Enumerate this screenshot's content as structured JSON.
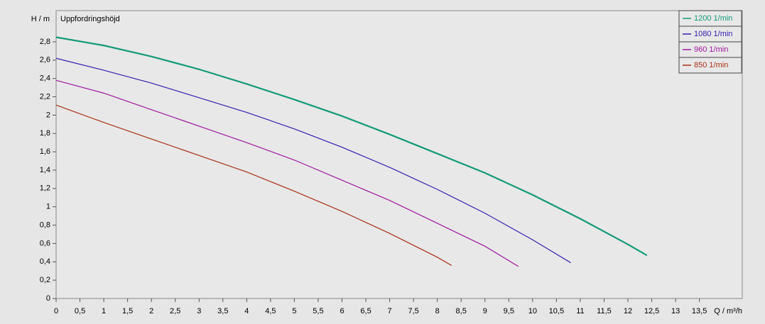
{
  "chart_data": {
    "type": "line",
    "annotation": "Uppfordringshöjd",
    "y_label": "H / m",
    "x_label": "Q / m³/h",
    "xlim": [
      0,
      14.4
    ],
    "ylim": [
      0,
      3.14
    ],
    "xticks": [
      0,
      {
        "value": 0.5,
        "label": "0,5"
      },
      1,
      {
        "value": 1.5,
        "label": "1,5"
      },
      2,
      {
        "value": 2.5,
        "label": "2,5"
      },
      3,
      {
        "value": 3.5,
        "label": "3,5"
      },
      4,
      {
        "value": 4.5,
        "label": "4,5"
      },
      5,
      {
        "value": 5.5,
        "label": "5,5"
      },
      6,
      {
        "value": 6.5,
        "label": "6,5"
      },
      7,
      {
        "value": 7.5,
        "label": "7,5"
      },
      8,
      {
        "value": 8.5,
        "label": "8,5"
      },
      9,
      {
        "value": 9.5,
        "label": "9,5"
      },
      10,
      {
        "value": 10.5,
        "label": "10,5"
      },
      11,
      {
        "value": 11.5,
        "label": "11,5"
      },
      12,
      {
        "value": 12.5,
        "label": "12,5"
      },
      13,
      {
        "value": 13.5,
        "label": "13,5"
      }
    ],
    "yticks": [
      0,
      {
        "value": 0.2,
        "label": "0,2"
      },
      {
        "value": 0.4,
        "label": "0,4"
      },
      {
        "value": 0.6,
        "label": "0,6"
      },
      {
        "value": 0.8,
        "label": "0,8"
      },
      1,
      {
        "value": 1.2,
        "label": "1,2"
      },
      {
        "value": 1.4,
        "label": "1,4"
      },
      {
        "value": 1.6,
        "label": "1,6"
      },
      {
        "value": 1.8,
        "label": "1,8"
      },
      2,
      {
        "value": 2.2,
        "label": "2,2"
      },
      {
        "value": 2.4,
        "label": "2,4"
      },
      {
        "value": 2.6,
        "label": "2,6"
      },
      {
        "value": 2.8,
        "label": "2,8"
      }
    ],
    "legend": "top-right",
    "series": [
      {
        "name": "1200 1/min",
        "color": "#139a78",
        "x": [
          0,
          1,
          2,
          3,
          4,
          5,
          6,
          7,
          8,
          9,
          10,
          11,
          12,
          12.4
        ],
        "values": [
          2.85,
          2.76,
          2.64,
          2.5,
          2.34,
          2.17,
          1.99,
          1.79,
          1.58,
          1.37,
          1.13,
          0.87,
          0.59,
          0.47
        ]
      },
      {
        "name": "1080 1/min",
        "color": "#3320b0",
        "x": [
          0,
          1,
          2,
          3,
          4,
          5,
          6,
          7,
          8,
          9,
          10,
          10.8
        ],
        "values": [
          2.62,
          2.49,
          2.35,
          2.19,
          2.03,
          1.85,
          1.65,
          1.43,
          1.19,
          0.93,
          0.64,
          0.39
        ]
      },
      {
        "name": "960 1/min",
        "color": "#a0189e",
        "x": [
          0,
          1,
          2,
          3,
          4,
          5,
          6,
          7,
          8,
          9,
          9.7
        ],
        "values": [
          2.38,
          2.24,
          2.06,
          1.88,
          1.7,
          1.51,
          1.29,
          1.07,
          0.82,
          0.57,
          0.35
        ]
      },
      {
        "name": "850 1/min",
        "color": "#a83018",
        "x": [
          0,
          1,
          2,
          3,
          4,
          5,
          6,
          7,
          8,
          8.3
        ],
        "values": [
          2.11,
          1.92,
          1.74,
          1.56,
          1.38,
          1.17,
          0.95,
          0.71,
          0.45,
          0.36
        ]
      }
    ]
  }
}
